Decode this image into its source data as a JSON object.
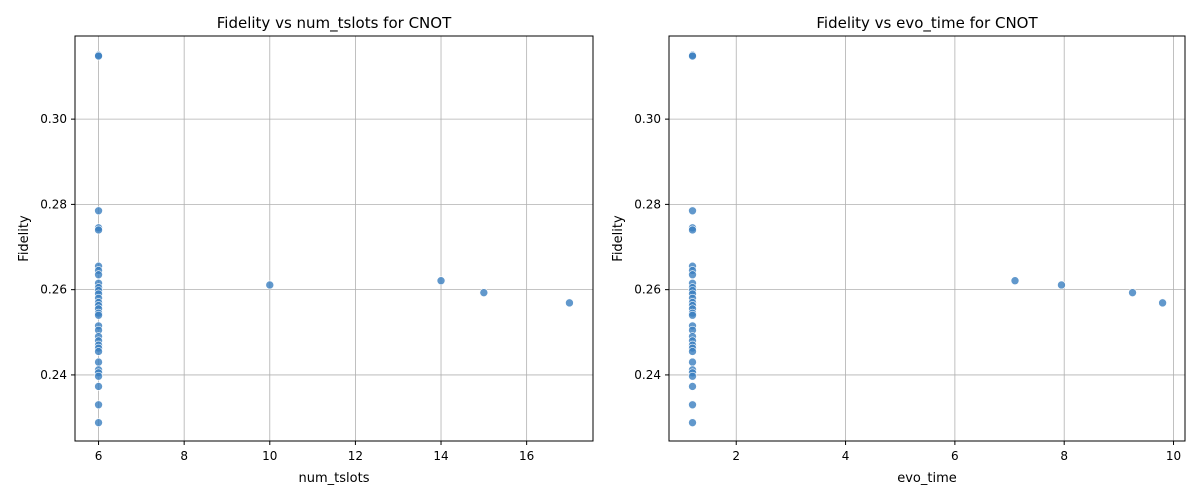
{
  "chart_data": [
    {
      "type": "scatter",
      "title": "Fidelity vs num_tslots for CNOT",
      "xlabel": "num_tslots",
      "ylabel": "Fidelity",
      "xlim": [
        5.45,
        17.55
      ],
      "ylim": [
        0.2245,
        0.3195
      ],
      "xticks": [
        6,
        8,
        10,
        12,
        14,
        16
      ],
      "xtick_labels": [
        "6",
        "8",
        "10",
        "12",
        "14",
        "16"
      ],
      "yticks": [
        0.24,
        0.26,
        0.28,
        0.3
      ],
      "ytick_labels": [
        "0.24",
        "0.26",
        "0.28",
        "0.30"
      ],
      "grid": true,
      "color": "#3a7ebf",
      "points": [
        {
          "x": 6,
          "y": 0.315
        },
        {
          "x": 6,
          "y": 0.3148
        },
        {
          "x": 6,
          "y": 0.2785
        },
        {
          "x": 6,
          "y": 0.2745
        },
        {
          "x": 6,
          "y": 0.274
        },
        {
          "x": 6,
          "y": 0.2655
        },
        {
          "x": 6,
          "y": 0.2645
        },
        {
          "x": 6,
          "y": 0.2635
        },
        {
          "x": 6,
          "y": 0.2615
        },
        {
          "x": 6,
          "y": 0.2605
        },
        {
          "x": 6,
          "y": 0.2598
        },
        {
          "x": 6,
          "y": 0.259
        },
        {
          "x": 6,
          "y": 0.258
        },
        {
          "x": 6,
          "y": 0.257
        },
        {
          "x": 6,
          "y": 0.2563
        },
        {
          "x": 6,
          "y": 0.2555
        },
        {
          "x": 6,
          "y": 0.2545
        },
        {
          "x": 6,
          "y": 0.254
        },
        {
          "x": 6,
          "y": 0.2515
        },
        {
          "x": 6,
          "y": 0.2505
        },
        {
          "x": 6,
          "y": 0.249
        },
        {
          "x": 6,
          "y": 0.248
        },
        {
          "x": 6,
          "y": 0.247
        },
        {
          "x": 6,
          "y": 0.2463
        },
        {
          "x": 6,
          "y": 0.2455
        },
        {
          "x": 6,
          "y": 0.243
        },
        {
          "x": 6,
          "y": 0.2412
        },
        {
          "x": 6,
          "y": 0.2405
        },
        {
          "x": 6,
          "y": 0.2397
        },
        {
          "x": 6,
          "y": 0.2373
        },
        {
          "x": 6,
          "y": 0.233
        },
        {
          "x": 6,
          "y": 0.2288
        },
        {
          "x": 10,
          "y": 0.2611
        },
        {
          "x": 14,
          "y": 0.2621
        },
        {
          "x": 15,
          "y": 0.2593
        },
        {
          "x": 17,
          "y": 0.2569
        }
      ]
    },
    {
      "type": "scatter",
      "title": "Fidelity vs evo_time for CNOT",
      "xlabel": "evo_time",
      "ylabel": "Fidelity",
      "xlim": [
        0.77,
        10.21
      ],
      "ylim": [
        0.2245,
        0.3195
      ],
      "xticks": [
        2,
        4,
        6,
        8,
        10
      ],
      "xtick_labels": [
        "2",
        "4",
        "6",
        "8",
        "10"
      ],
      "yticks": [
        0.24,
        0.26,
        0.28,
        0.3
      ],
      "ytick_labels": [
        "0.24",
        "0.26",
        "0.28",
        "0.30"
      ],
      "grid": true,
      "color": "#3a7ebf",
      "points": [
        {
          "x": 1.2,
          "y": 0.315
        },
        {
          "x": 1.2,
          "y": 0.3148
        },
        {
          "x": 1.2,
          "y": 0.2785
        },
        {
          "x": 1.2,
          "y": 0.2745
        },
        {
          "x": 1.2,
          "y": 0.274
        },
        {
          "x": 1.2,
          "y": 0.2655
        },
        {
          "x": 1.2,
          "y": 0.2645
        },
        {
          "x": 1.2,
          "y": 0.2635
        },
        {
          "x": 1.2,
          "y": 0.2615
        },
        {
          "x": 1.2,
          "y": 0.2605
        },
        {
          "x": 1.2,
          "y": 0.2598
        },
        {
          "x": 1.2,
          "y": 0.259
        },
        {
          "x": 1.2,
          "y": 0.258
        },
        {
          "x": 1.2,
          "y": 0.257
        },
        {
          "x": 1.2,
          "y": 0.2563
        },
        {
          "x": 1.2,
          "y": 0.2555
        },
        {
          "x": 1.2,
          "y": 0.2545
        },
        {
          "x": 1.2,
          "y": 0.254
        },
        {
          "x": 1.2,
          "y": 0.2515
        },
        {
          "x": 1.2,
          "y": 0.2505
        },
        {
          "x": 1.2,
          "y": 0.249
        },
        {
          "x": 1.2,
          "y": 0.248
        },
        {
          "x": 1.2,
          "y": 0.247
        },
        {
          "x": 1.2,
          "y": 0.2463
        },
        {
          "x": 1.2,
          "y": 0.2455
        },
        {
          "x": 1.2,
          "y": 0.243
        },
        {
          "x": 1.2,
          "y": 0.2412
        },
        {
          "x": 1.2,
          "y": 0.2405
        },
        {
          "x": 1.2,
          "y": 0.2397
        },
        {
          "x": 1.2,
          "y": 0.2373
        },
        {
          "x": 1.2,
          "y": 0.233
        },
        {
          "x": 1.2,
          "y": 0.2288
        },
        {
          "x": 7.1,
          "y": 0.2621
        },
        {
          "x": 7.95,
          "y": 0.2611
        },
        {
          "x": 9.25,
          "y": 0.2593
        },
        {
          "x": 9.8,
          "y": 0.2569
        }
      ]
    }
  ]
}
